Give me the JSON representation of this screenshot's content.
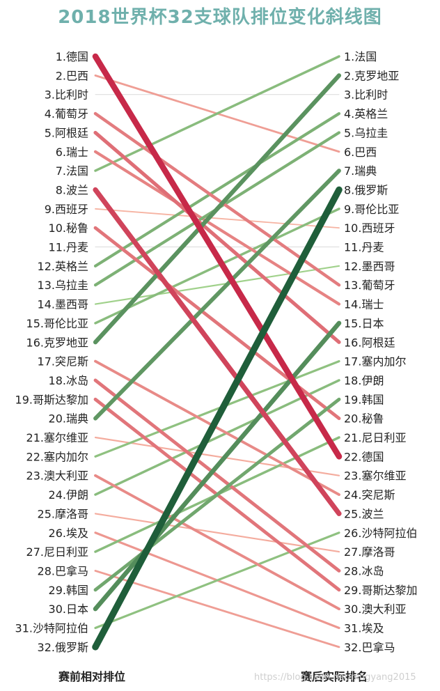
{
  "chart_data": {
    "type": "slope",
    "title": "2018世界杯32支球队排位变化斜线图",
    "left_axis_label": "赛前相对排位",
    "right_axis_label": "赛后实际排名",
    "left_labels": [
      "1.德国",
      "2.巴西",
      "3.比利时",
      "4.葡萄牙",
      "5.阿根廷",
      "6.瑞士",
      "7.法国",
      "8.波兰",
      "9.西班牙",
      "10.秘鲁",
      "11.丹麦",
      "12.英格兰",
      "13.乌拉圭",
      "14.墨西哥",
      "15.哥伦比亚",
      "16.克罗地亚",
      "17.突尼斯",
      "18.冰岛",
      "19.哥斯达黎加",
      "20.瑞典",
      "21.塞尔维亚",
      "22.塞内加尔",
      "23.澳大利亚",
      "24.伊朗",
      "25.摩洛哥",
      "26.埃及",
      "27.尼日利亚",
      "28.巴拿马",
      "29.韩国",
      "30.日本",
      "31.沙特阿拉伯",
      "32.俄罗斯"
    ],
    "right_labels": [
      "1.法国",
      "2.克罗地亚",
      "3.比利时",
      "4.英格兰",
      "5.乌拉圭",
      "6.巴西",
      "7.瑞典",
      "8.俄罗斯",
      "9.哥伦比亚",
      "10.西班牙",
      "11.丹麦",
      "12.墨西哥",
      "13.葡萄牙",
      "14.瑞士",
      "15.日本",
      "16.阿根廷",
      "17.塞内加尔",
      "18.伊朗",
      "19.韩国",
      "20.秘鲁",
      "21.尼日利亚",
      "22.德国",
      "23.塞尔维亚",
      "24.突尼斯",
      "25.波兰",
      "26.沙特阿拉伯",
      "27.摩洛哥",
      "28.冰岛",
      "29.哥斯达黎加",
      "30.澳大利亚",
      "31.埃及",
      "32.巴拿马"
    ],
    "teams": [
      {
        "team": "德国",
        "before": 1,
        "after": 22
      },
      {
        "team": "巴西",
        "before": 2,
        "after": 6
      },
      {
        "team": "比利时",
        "before": 3,
        "after": 3
      },
      {
        "team": "葡萄牙",
        "before": 4,
        "after": 13
      },
      {
        "team": "阿根廷",
        "before": 5,
        "after": 16
      },
      {
        "team": "瑞士",
        "before": 6,
        "after": 14
      },
      {
        "team": "法国",
        "before": 7,
        "after": 1
      },
      {
        "team": "波兰",
        "before": 8,
        "after": 25
      },
      {
        "team": "西班牙",
        "before": 9,
        "after": 10
      },
      {
        "team": "秘鲁",
        "before": 10,
        "after": 20
      },
      {
        "team": "丹麦",
        "before": 11,
        "after": 11
      },
      {
        "team": "英格兰",
        "before": 12,
        "after": 4
      },
      {
        "team": "乌拉圭",
        "before": 13,
        "after": 5
      },
      {
        "team": "墨西哥",
        "before": 14,
        "after": 12
      },
      {
        "team": "哥伦比亚",
        "before": 15,
        "after": 9
      },
      {
        "team": "克罗地亚",
        "before": 16,
        "after": 2
      },
      {
        "team": "突尼斯",
        "before": 17,
        "after": 24
      },
      {
        "team": "冰岛",
        "before": 18,
        "after": 28
      },
      {
        "team": "哥斯达黎加",
        "before": 19,
        "after": 29
      },
      {
        "team": "瑞典",
        "before": 20,
        "after": 7
      },
      {
        "team": "塞尔维亚",
        "before": 21,
        "after": 23
      },
      {
        "team": "塞内加尔",
        "before": 22,
        "after": 17
      },
      {
        "team": "澳大利亚",
        "before": 23,
        "after": 30
      },
      {
        "team": "伊朗",
        "before": 24,
        "after": 18
      },
      {
        "team": "摩洛哥",
        "before": 25,
        "after": 27
      },
      {
        "team": "埃及",
        "before": 26,
        "after": 31
      },
      {
        "team": "尼日利亚",
        "before": 27,
        "after": 21
      },
      {
        "team": "巴拿马",
        "before": 28,
        "after": 32
      },
      {
        "team": "韩国",
        "before": 29,
        "after": 19
      },
      {
        "team": "日本",
        "before": 30,
        "after": 15
      },
      {
        "team": "沙特阿拉伯",
        "before": 31,
        "after": 26
      },
      {
        "team": "俄罗斯",
        "before": 32,
        "after": 8
      }
    ],
    "colors": {
      "up_light": "#a6d68f",
      "up_dark": "#1f5e3a",
      "down_light": "#f6b3a2",
      "down_dark": "#c0143c",
      "flat": "#d9d9d9",
      "title": "#6fb0ac"
    }
  },
  "watermark": "https://blog.csdn.net/ningyang2015"
}
